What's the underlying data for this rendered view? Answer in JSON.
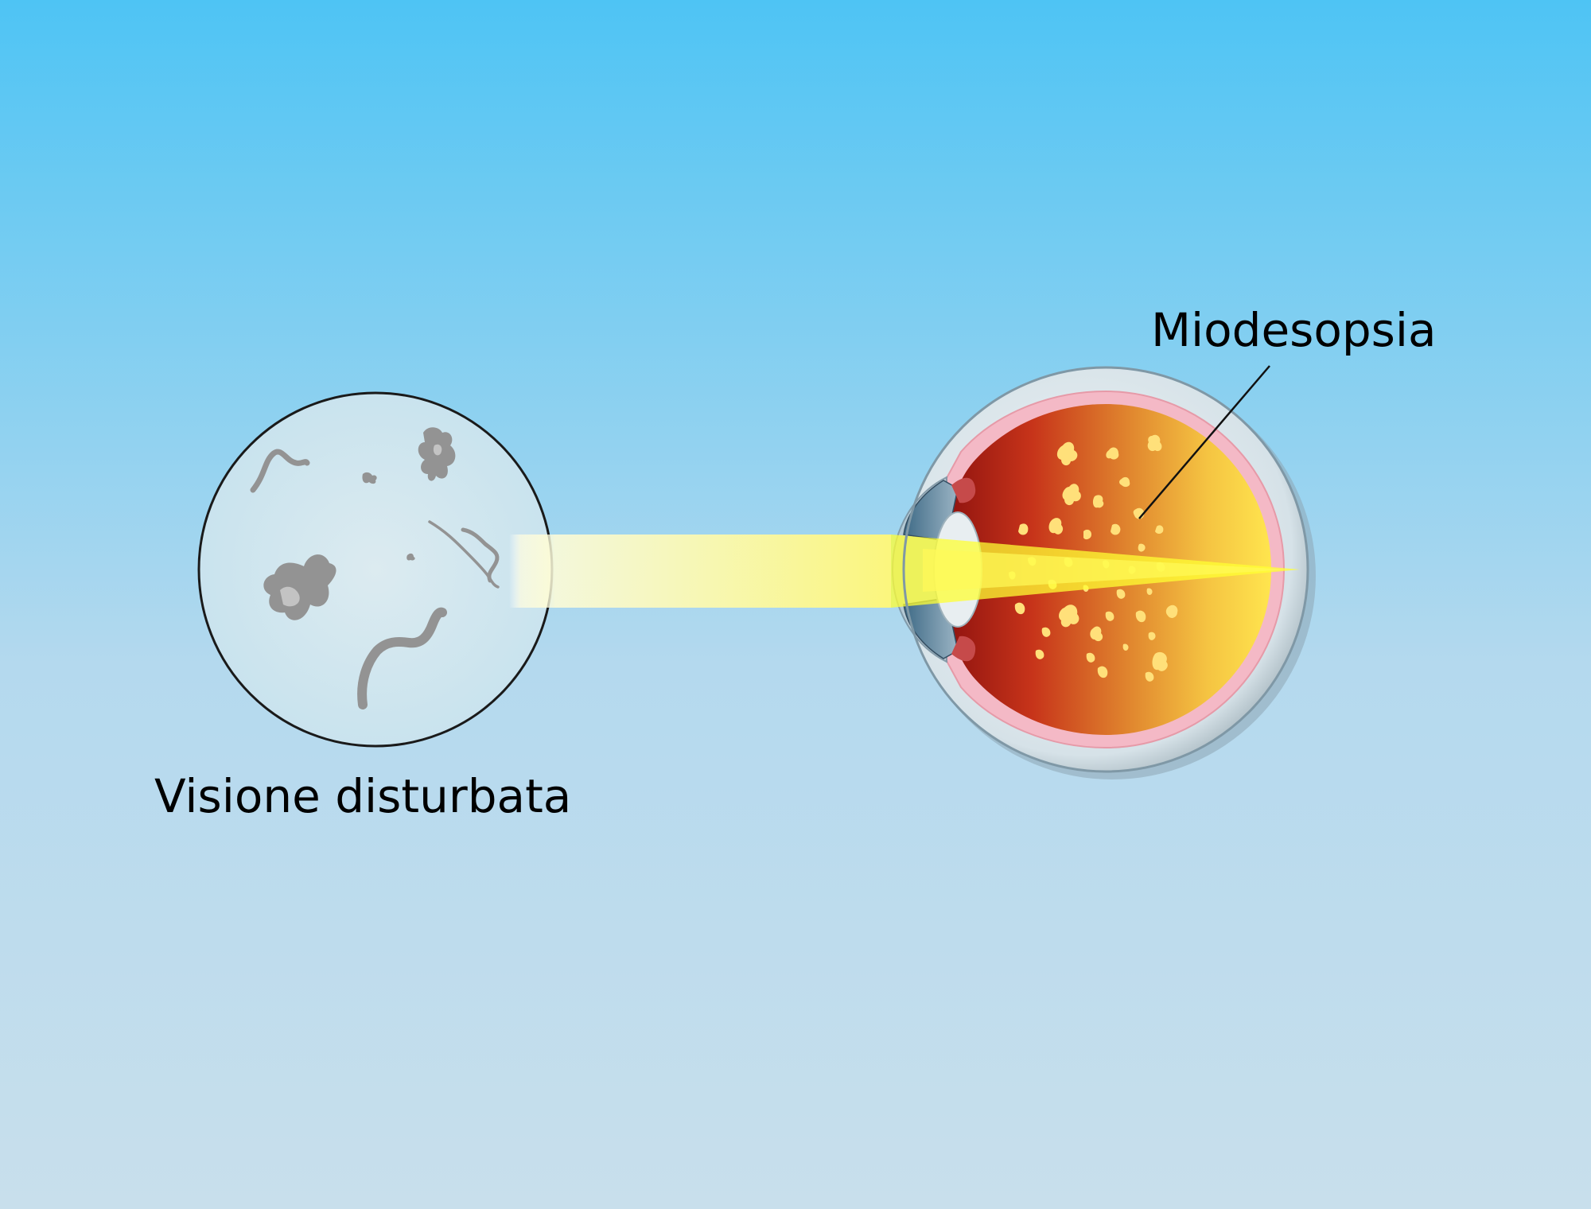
{
  "labels": {
    "vision": "Visione disturbata",
    "floaters": "Miodesopsia"
  },
  "colors": {
    "sky_top": "#4ec4f4",
    "sky_bottom": "#c8dfec",
    "light_beam": "#ffff33",
    "retina_inner": "#9e1812",
    "retina_outer": "#ffe24f",
    "floater_spots": "#ffe07a",
    "vision_floaters": "#8e8e8e"
  },
  "icons": {
    "vision": "vision-circle-icon",
    "eye": "eyeball-cross-section-icon",
    "beam": "light-beam-icon"
  }
}
